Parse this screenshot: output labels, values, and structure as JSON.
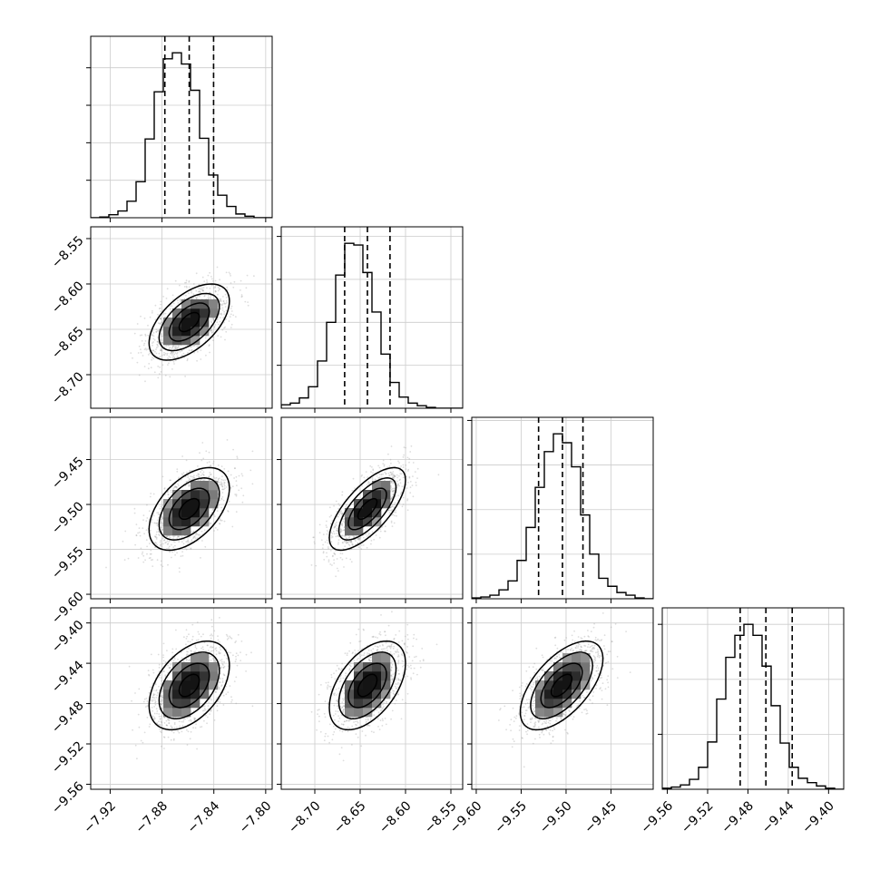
{
  "chart_data": {
    "type": "corner",
    "colors": {
      "line": "#000000",
      "grid": "#cccccc",
      "scatter": "#9e9e9e",
      "background": "#ffffff"
    },
    "grid": true,
    "parameters": [
      {
        "range": [
          -7.935,
          -7.795
        ],
        "ticks": [
          -7.92,
          -7.88,
          -7.84,
          -7.8
        ],
        "tick_labels": [
          "−7.92",
          "−7.88",
          "−7.84",
          "−7.80"
        ],
        "center": -7.859,
        "sigma": 0.0155,
        "quantiles": [
          -7.8778,
          -7.859,
          -7.8402
        ],
        "hist_counts": [
          0,
          1,
          4,
          9,
          22,
          48,
          105,
          168,
          212,
          220,
          205,
          170,
          106,
          57,
          30,
          15,
          5,
          2,
          0,
          0
        ]
      },
      {
        "range": [
          -8.737,
          -8.537
        ],
        "ticks": [
          -8.7,
          -8.65,
          -8.6,
          -8.55
        ],
        "tick_labels": [
          "−8.70",
          "−8.65",
          "−8.60",
          "−8.55"
        ],
        "center": -8.642,
        "sigma": 0.021,
        "quantiles": [
          -8.6671,
          -8.642,
          -8.6171
        ],
        "hist_counts": [
          4,
          6,
          12,
          25,
          55,
          100,
          155,
          192,
          190,
          158,
          112,
          63,
          30,
          13,
          6,
          3,
          1,
          0,
          0,
          0
        ]
      },
      {
        "range": [
          -9.605,
          -9.403
        ],
        "ticks": [
          -9.6,
          -9.55,
          -9.5,
          -9.45
        ],
        "tick_labels": [
          "−9.60",
          "−9.55",
          "−9.50",
          "−9.45"
        ],
        "center": -9.505,
        "sigma": 0.023,
        "quantiles": [
          -9.5306,
          -9.504,
          -9.4812
        ],
        "hist_counts": [
          1,
          2,
          4,
          10,
          20,
          43,
          80,
          125,
          165,
          185,
          175,
          148,
          94,
          50,
          23,
          14,
          7,
          4,
          1,
          0
        ]
      },
      {
        "range": [
          -9.565,
          -9.385
        ],
        "ticks": [
          -9.56,
          -9.52,
          -9.48,
          -9.44,
          -9.4
        ],
        "tick_labels": [
          "−9.56",
          "−9.52",
          "−9.48",
          "−9.44",
          "−9.40"
        ],
        "center": -9.462,
        "sigma": 0.022,
        "quantiles": [
          -9.4877,
          -9.4622,
          -9.4361
        ],
        "hist_counts": [
          1,
          2,
          4,
          9,
          20,
          43,
          82,
          120,
          140,
          150,
          140,
          112,
          76,
          42,
          20,
          10,
          6,
          3,
          1,
          0
        ]
      }
    ],
    "correlations": {
      "1,0": 0.55,
      "2,0": 0.5,
      "2,1": 0.7,
      "3,0": 0.45,
      "3,1": 0.5,
      "3,2": 0.6
    }
  }
}
